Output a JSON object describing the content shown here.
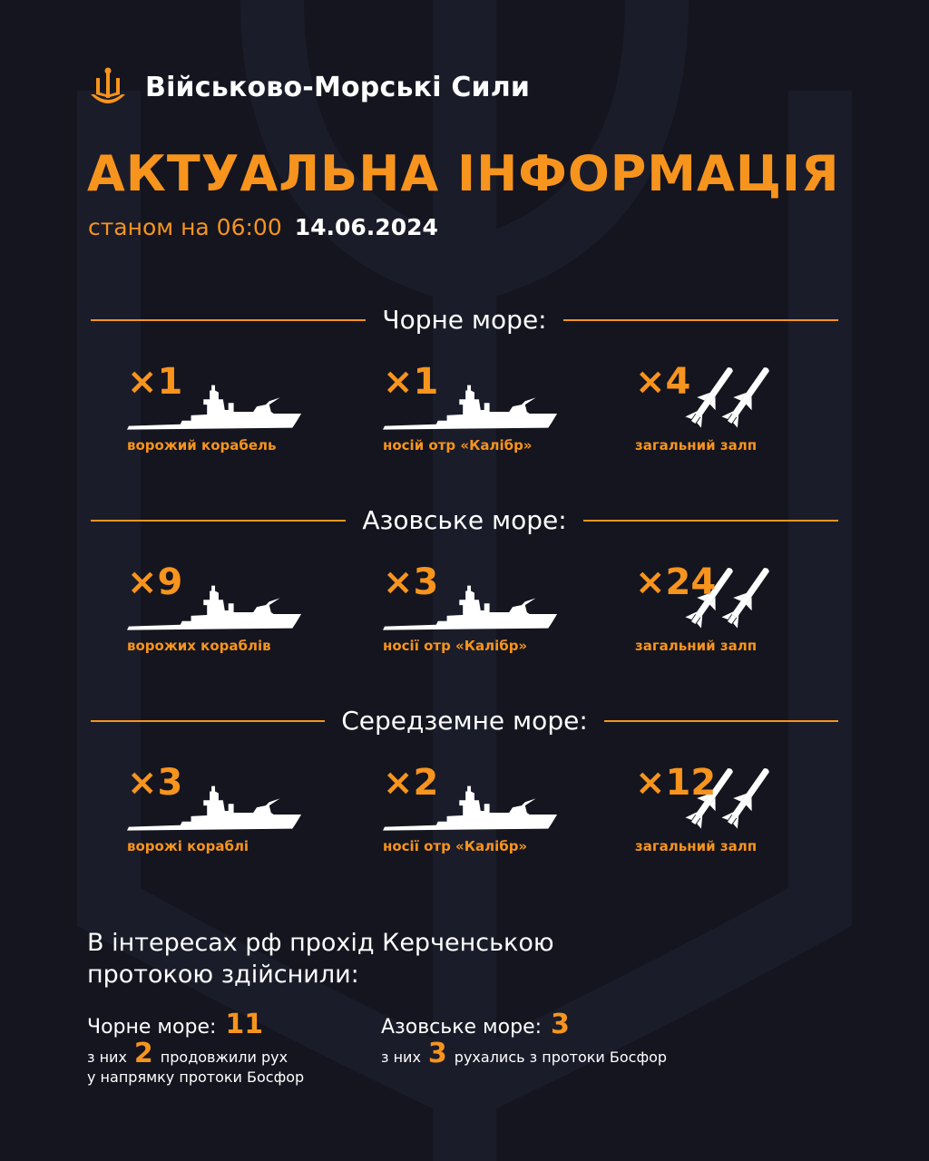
{
  "brand": {
    "name": "Військово-Морські Сили",
    "icon": "trident-anchor-icon"
  },
  "title": "АКТУАЛЬНА ІНФОРМАЦІЯ",
  "subtitle": {
    "label": "станом на 06:00",
    "date": "14.06.2024"
  },
  "colors": {
    "background": "#14151f",
    "accent": "#f7941d",
    "text": "#ffffff"
  },
  "sections": [
    {
      "title": "Чорне море:",
      "items": [
        {
          "count": "×1",
          "label": "ворожий корабель",
          "icon": "ship-icon"
        },
        {
          "count": "×1",
          "label": "носій отр «Калібр»",
          "icon": "ship-icon"
        },
        {
          "count": "×4",
          "label": "загальний залп",
          "icon": "missiles-icon"
        }
      ]
    },
    {
      "title": "Азовське море:",
      "items": [
        {
          "count": "×9",
          "label": "ворожих кораблів",
          "icon": "ship-icon"
        },
        {
          "count": "×3",
          "label": "носії отр «Калібр»",
          "icon": "ship-icon"
        },
        {
          "count": "×24",
          "label": "загальний залп",
          "icon": "missiles-icon"
        }
      ]
    },
    {
      "title": "Середземне море:",
      "items": [
        {
          "count": "×3",
          "label": "ворожі кораблі",
          "icon": "ship-icon"
        },
        {
          "count": "×2",
          "label": "носії отр «Калібр»",
          "icon": "ship-icon"
        },
        {
          "count": "×12",
          "label": "загальний залп",
          "icon": "missiles-icon"
        }
      ]
    }
  ],
  "kerch": {
    "heading_line1": "В інтересах рф прохід Керченською",
    "heading_line2": "протокою здійснили:",
    "black_sea": {
      "label": "Чорне море:",
      "value": "11",
      "note_prefix": "з них",
      "note_value": "2",
      "note_line1": "продовжили рух",
      "note_line2": "у напрямку протоки Босфор"
    },
    "azov_sea": {
      "label": "Азовське море:",
      "value": "3",
      "note_prefix": "з них",
      "note_value": "3",
      "note_line1": "рухались з протоки Босфор"
    }
  }
}
